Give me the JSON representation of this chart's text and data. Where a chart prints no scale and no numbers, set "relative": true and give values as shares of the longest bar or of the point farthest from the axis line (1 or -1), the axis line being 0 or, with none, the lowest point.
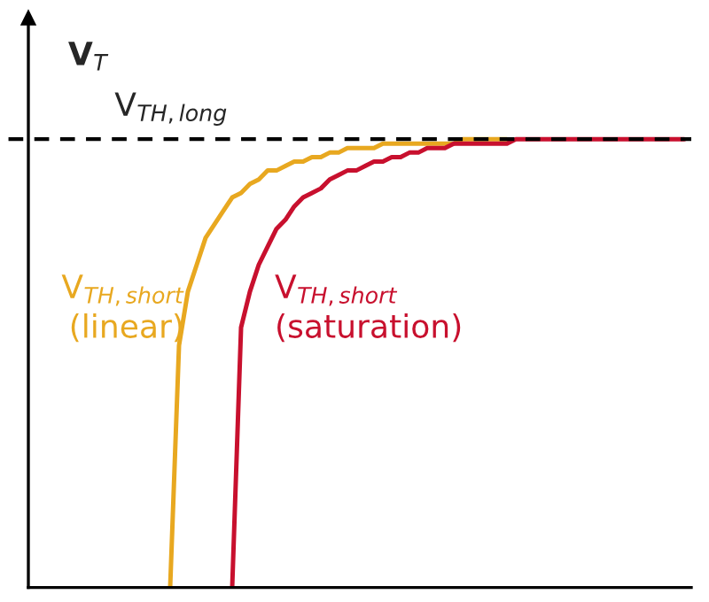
{
  "chart_data": {
    "type": "line",
    "relative": true,
    "ylabel": "V$_{T}$",
    "legend": false,
    "marker": "none",
    "line_style": "solid",
    "categories": [
      null,
      null,
      null,
      null,
      null,
      null,
      null,
      null,
      null,
      null,
      null,
      null,
      null,
      null,
      null,
      null,
      null,
      null,
      null,
      null,
      null,
      null,
      null,
      null,
      null,
      null,
      null,
      null,
      null,
      null,
      null,
      null,
      null,
      null,
      null,
      null,
      null,
      null,
      null,
      null,
      null,
      null,
      null,
      null,
      null,
      null,
      null,
      null,
      null,
      null,
      null,
      null,
      null,
      null,
      null,
      null,
      null,
      null,
      null,
      null,
      null,
      null,
      null,
      null,
      null,
      null,
      null,
      null,
      null,
      null,
      null,
      null,
      null,
      null,
      null
    ],
    "series": [
      {
        "name": "V$_{TH,short}$\n(linear)",
        "color": "#e8a820",
        "values": [
          null,
          null,
          null,
          null,
          null,
          null,
          null,
          null,
          null,
          null,
          null,
          null,
          null,
          null,
          null,
          null,
          0,
          0.54,
          0.66,
          0.72,
          0.78,
          0.81,
          0.84,
          0.87,
          0.88,
          0.9,
          0.91,
          0.93,
          0.93,
          0.94,
          0.95,
          0.95,
          0.96,
          0.96,
          0.97,
          0.97,
          0.98,
          0.98,
          0.98,
          0.98,
          0.99,
          0.99,
          0.99,
          0.99,
          0.99,
          0.99,
          0.99,
          0.99,
          0.99,
          1,
          1,
          1,
          1,
          1,
          1,
          null,
          null,
          null,
          null,
          null,
          null,
          null,
          null,
          null,
          null,
          null,
          null,
          null,
          null,
          null,
          null,
          null,
          null,
          null,
          null
        ]
      },
      {
        "name": "V$_{TH,short}$\n(saturation)",
        "color": "#c8102e",
        "values": [
          null,
          null,
          null,
          null,
          null,
          null,
          null,
          null,
          null,
          null,
          null,
          null,
          null,
          null,
          null,
          null,
          null,
          null,
          null,
          null,
          null,
          null,
          null,
          0,
          0.58,
          0.66,
          0.72,
          0.76,
          0.8,
          0.82,
          0.85,
          0.87,
          0.88,
          0.89,
          0.91,
          0.92,
          0.93,
          0.93,
          0.94,
          0.95,
          0.95,
          0.96,
          0.96,
          0.97,
          0.97,
          0.98,
          0.98,
          0.98,
          0.99,
          0.99,
          0.99,
          0.99,
          0.99,
          0.99,
          0.99,
          1,
          1,
          1,
          1,
          1,
          1,
          1,
          1,
          1,
          1,
          1,
          1,
          1,
          1,
          1,
          1,
          1,
          1,
          1,
          1
        ]
      }
    ],
    "ref_lines": [
      {
        "axis": "y",
        "value": 1,
        "label": "V$_{TH,long}$",
        "color": "#000000",
        "line_style": "dashed"
      }
    ]
  }
}
